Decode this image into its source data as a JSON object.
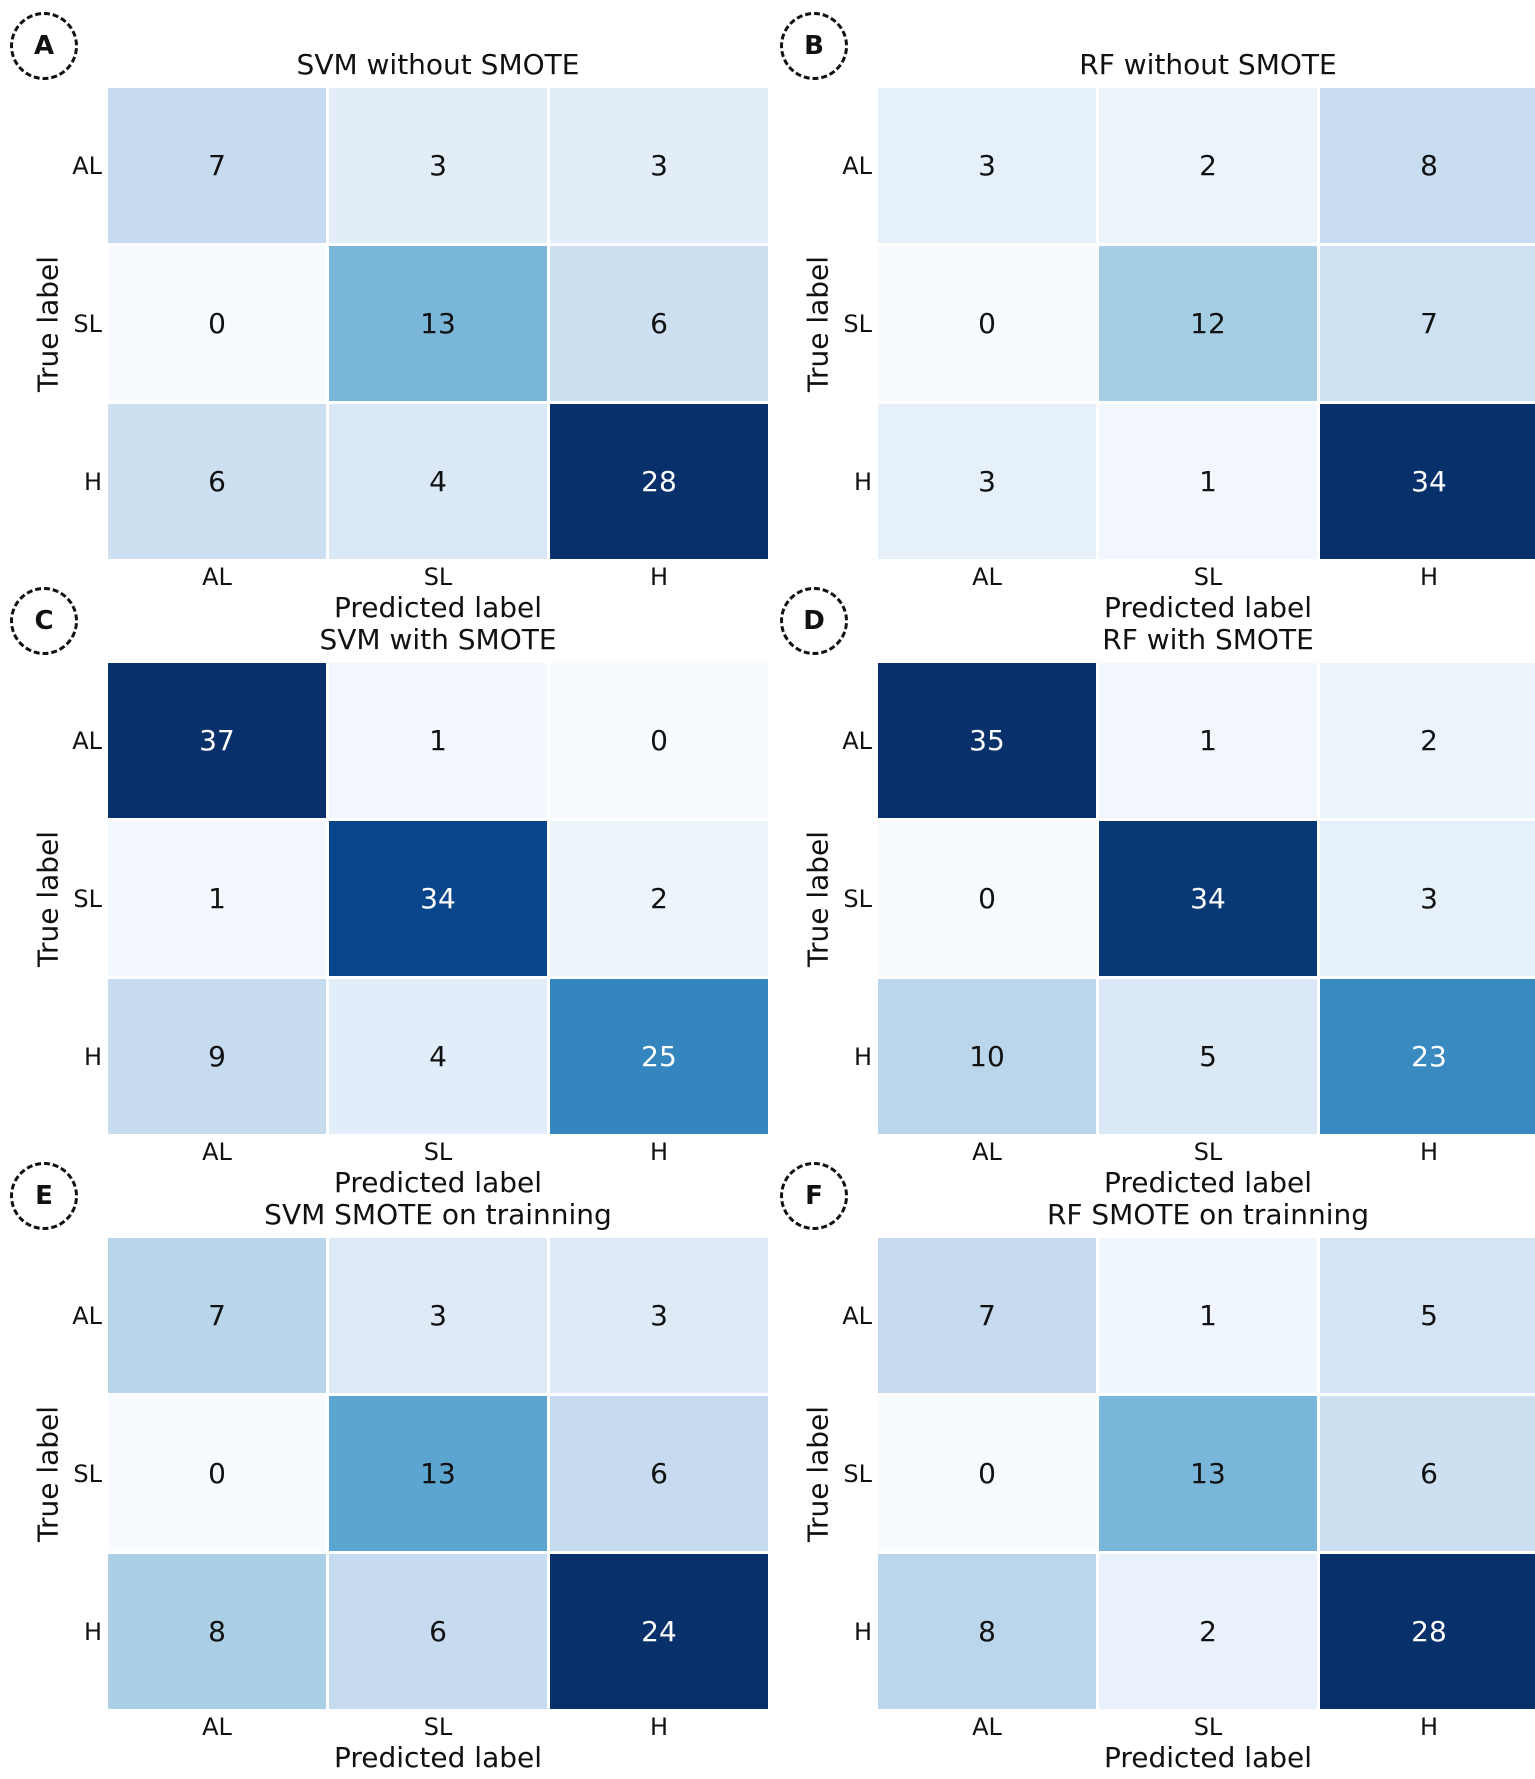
{
  "figure": {
    "xlabel": "Predicted label",
    "ylabel": "True label"
  },
  "chart_data": [
    {
      "panel": "A",
      "type": "heatmap",
      "title": "SVM without SMOTE",
      "xlabel": "Predicted label",
      "ylabel": "True label",
      "x_categories": [
        "AL",
        "SL",
        "H"
      ],
      "y_categories": [
        "AL",
        "SL",
        "H"
      ],
      "values": [
        [
          7,
          3,
          3
        ],
        [
          0,
          13,
          6
        ],
        [
          6,
          4,
          28
        ]
      ],
      "colormap": "Blues",
      "vmin": 0,
      "vmax": 28
    },
    {
      "panel": "B",
      "type": "heatmap",
      "title": "RF without SMOTE",
      "xlabel": "Predicted label",
      "ylabel": "True label",
      "x_categories": [
        "AL",
        "SL",
        "H"
      ],
      "y_categories": [
        "AL",
        "SL",
        "H"
      ],
      "values": [
        [
          3,
          2,
          8
        ],
        [
          0,
          12,
          7
        ],
        [
          3,
          1,
          34
        ]
      ],
      "colormap": "Blues",
      "vmin": 0,
      "vmax": 34
    },
    {
      "panel": "C",
      "type": "heatmap",
      "title": "SVM with SMOTE",
      "xlabel": "Predicted label",
      "ylabel": "True label",
      "x_categories": [
        "AL",
        "SL",
        "H"
      ],
      "y_categories": [
        "AL",
        "SL",
        "H"
      ],
      "values": [
        [
          37,
          1,
          0
        ],
        [
          1,
          34,
          2
        ],
        [
          9,
          4,
          25
        ]
      ],
      "colormap": "Blues",
      "vmin": 0,
      "vmax": 37
    },
    {
      "panel": "D",
      "type": "heatmap",
      "title": "RF with SMOTE",
      "xlabel": "Predicted label",
      "ylabel": "True label",
      "x_categories": [
        "AL",
        "SL",
        "H"
      ],
      "y_categories": [
        "AL",
        "SL",
        "H"
      ],
      "values": [
        [
          35,
          1,
          2
        ],
        [
          0,
          34,
          3
        ],
        [
          10,
          5,
          23
        ]
      ],
      "colormap": "Blues",
      "vmin": 0,
      "vmax": 35
    },
    {
      "panel": "E",
      "type": "heatmap",
      "title": "SVM SMOTE on trainning",
      "xlabel": "Predicted label",
      "ylabel": "True label",
      "x_categories": [
        "AL",
        "SL",
        "H"
      ],
      "y_categories": [
        "AL",
        "SL",
        "H"
      ],
      "values": [
        [
          7,
          3,
          3
        ],
        [
          0,
          13,
          6
        ],
        [
          8,
          6,
          24
        ]
      ],
      "colormap": "Blues",
      "vmin": 0,
      "vmax": 24
    },
    {
      "panel": "F",
      "type": "heatmap",
      "title": "RF SMOTE on trainning",
      "xlabel": "Predicted label",
      "ylabel": "True label",
      "x_categories": [
        "AL",
        "SL",
        "H"
      ],
      "y_categories": [
        "AL",
        "SL",
        "H"
      ],
      "values": [
        [
          7,
          1,
          5
        ],
        [
          0,
          13,
          6
        ],
        [
          8,
          2,
          28
        ]
      ],
      "colormap": "Blues",
      "vmin": 0,
      "vmax": 28
    }
  ]
}
